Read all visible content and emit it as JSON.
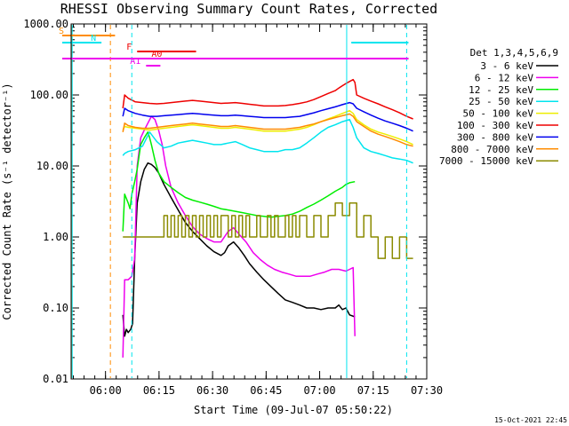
{
  "page": {
    "title": "RHESSI Observing Summary Count Rates, Corrected",
    "xlabel": "Start Time (09-Jul-07 05:50:22)",
    "ylabel": "Corrected Count Rate (s⁻¹ detector⁻¹)",
    "timestamp": "15-Oct-2021 22:45"
  },
  "legend": {
    "header": "Det 1,3,4,5,6,9"
  },
  "flags": [
    {
      "label": "S",
      "color": "#ff8c00",
      "y": 40,
      "start": -3.5,
      "end": 12.3
    },
    {
      "label": "N",
      "color": "#00e5ee",
      "y": 48,
      "start": -3.5,
      "end": 8.5
    },
    {
      "label": "N",
      "color": "#00e5ee",
      "y": 48,
      "start": 78.5,
      "end": 94.5
    },
    {
      "label": "F",
      "color": "#ee0000",
      "y": 58,
      "start": 18.5,
      "end": 35.0
    },
    {
      "label": "A0",
      "color": "#ee0000",
      "y": 66,
      "start": -3.5,
      "end": 94.5
    },
    {
      "label": "A0",
      "color": "#ee00ee",
      "y": 66,
      "start": -3.5,
      "end": 94.5
    },
    {
      "label": "A1",
      "color": "#ee00ee",
      "y": 74,
      "start": 21.0,
      "end": 25.0
    }
  ],
  "chart_data": {
    "type": "line",
    "title": "RHESSI Observing Summary Count Rates, Corrected",
    "xlabel": "Start Time (09-Jul-07 05:50:22)",
    "ylabel": "Corrected Count Rate (s⁻¹ detector⁻¹)",
    "x_unit": "minutes after 05:50:22",
    "x_ticks": [
      {
        "t": 9.63,
        "label": "06:00"
      },
      {
        "t": 24.63,
        "label": "06:15"
      },
      {
        "t": 39.63,
        "label": "06:30"
      },
      {
        "t": 54.63,
        "label": "06:45"
      },
      {
        "t": 69.63,
        "label": "07:00"
      },
      {
        "t": 84.63,
        "label": "07:15"
      },
      {
        "t": 99.63,
        "label": "07:30"
      }
    ],
    "xlim": [
      0,
      99.63
    ],
    "yscale": "log",
    "ylim": [
      0.01,
      1000
    ],
    "y_ticks": [
      "0.01",
      "0.10",
      "1.00",
      "10.00",
      "100.00",
      "1000.00"
    ],
    "grid": false,
    "legend_placement": "right",
    "vlines": [
      {
        "t": -0.3,
        "color": "#ff8c00",
        "dash": "none"
      },
      {
        "t": 0.3,
        "color": "#00e5ee",
        "dash": "none"
      },
      {
        "t": 11.0,
        "color": "#ff8c00",
        "dash": "5,4"
      },
      {
        "t": 17.0,
        "color": "#00e5ee",
        "dash": "5,4"
      },
      {
        "t": 77.2,
        "color": "#00e5ee",
        "dash": "none"
      },
      {
        "t": 94.0,
        "color": "#00e5ee",
        "dash": "5,4"
      }
    ],
    "series": [
      {
        "name": "3 - 6 keV",
        "color": "#000000",
        "t": [
          14.5,
          15.0,
          15.5,
          16.0,
          16.7,
          17.2,
          17.8,
          18.5,
          19.5,
          20.5,
          21.5,
          22.5,
          23.5,
          24.5,
          26.0,
          28.0,
          30.0,
          32.0,
          34.0,
          36.0,
          38.0,
          40.0,
          42.0,
          43.0,
          44.0,
          45.5,
          47.0,
          48.5,
          50.0,
          52.0,
          54.0,
          56.0,
          58.0,
          60.0,
          62.0,
          64.0,
          66.0,
          68.0,
          70.0,
          72.0,
          74.0,
          75.0,
          76.0,
          77.0,
          78.0,
          79.5
        ],
        "v": [
          0.08,
          0.04,
          0.05,
          0.045,
          0.05,
          0.06,
          0.5,
          3.0,
          6.0,
          9.0,
          11.0,
          10.5,
          9.5,
          8.0,
          5.5,
          3.6,
          2.4,
          1.6,
          1.2,
          0.95,
          0.75,
          0.62,
          0.55,
          0.6,
          0.75,
          0.85,
          0.7,
          0.55,
          0.42,
          0.32,
          0.25,
          0.2,
          0.16,
          0.13,
          0.12,
          0.11,
          0.1,
          0.1,
          0.095,
          0.1,
          0.1,
          0.11,
          0.095,
          0.1,
          0.08,
          0.075
        ]
      },
      {
        "name": "6 - 12 keV",
        "color": "#ee00ee",
        "t": [
          14.5,
          15.0,
          16.0,
          17.0,
          17.8,
          18.5,
          19.5,
          20.5,
          21.5,
          22.5,
          23.5,
          24.5,
          25.5,
          26.5,
          28.0,
          30.0,
          32.0,
          34.0,
          36.0,
          38.0,
          40.0,
          42.0,
          44.0,
          45.5,
          47.0,
          49.0,
          51.0,
          53.0,
          55.0,
          57.0,
          59.0,
          61.0,
          63.0,
          65.0,
          67.0,
          69.0,
          71.0,
          73.0,
          75.0,
          77.0,
          78.0,
          79.0,
          79.5
        ],
        "v": [
          0.02,
          0.25,
          0.25,
          0.28,
          0.5,
          10.0,
          25.0,
          32.0,
          40.0,
          50.0,
          45.0,
          32.0,
          20.0,
          10.0,
          5.0,
          3.0,
          2.0,
          1.4,
          1.1,
          0.95,
          0.85,
          0.85,
          1.2,
          1.35,
          1.1,
          0.85,
          0.6,
          0.48,
          0.4,
          0.35,
          0.32,
          0.3,
          0.28,
          0.28,
          0.28,
          0.3,
          0.32,
          0.35,
          0.35,
          0.33,
          0.35,
          0.37,
          0.04
        ]
      },
      {
        "name": "12 - 25 keV",
        "color": "#00ee00",
        "t": [
          14.5,
          15.0,
          16.0,
          16.5,
          17.0,
          17.8,
          18.5,
          19.5,
          20.5,
          21.5,
          22.0,
          22.5,
          23.5,
          24.5,
          26.0,
          28.0,
          30.0,
          32.0,
          34.0,
          36.0,
          38.0,
          40.0,
          42.0,
          44.0,
          46.0,
          48.0,
          50.0,
          52.0,
          54.0,
          56.0,
          58.0,
          60.0,
          62.0,
          64.0,
          66.0,
          68.0,
          70.0,
          72.0,
          74.0,
          76.0,
          77.0,
          78.0,
          79.5
        ],
        "v": [
          1.2,
          4.0,
          3.0,
          2.5,
          4.0,
          6.0,
          9.0,
          20.0,
          25.0,
          30.0,
          25.0,
          20.0,
          12.0,
          8.0,
          6.0,
          5.0,
          4.2,
          3.6,
          3.3,
          3.1,
          2.9,
          2.7,
          2.5,
          2.4,
          2.3,
          2.2,
          2.1,
          2.0,
          1.95,
          1.9,
          1.95,
          2.0,
          2.1,
          2.3,
          2.6,
          2.9,
          3.3,
          3.8,
          4.4,
          5.0,
          5.5,
          5.8,
          6.0
        ]
      },
      {
        "name": "25 - 50 keV",
        "color": "#00e5ee",
        "t": [
          14.5,
          15.0,
          16.0,
          18.0,
          20.0,
          22.0,
          24.0,
          26.0,
          28.0,
          30.0,
          32.0,
          34.0,
          36.0,
          38.0,
          40.0,
          42.0,
          44.0,
          46.0,
          48.0,
          50.0,
          52.0,
          54.0,
          56.0,
          58.0,
          60.0,
          62.0,
          64.0,
          66.0,
          68.0,
          70.0,
          72.0,
          74.0,
          76.0,
          78.0,
          79.0,
          80.0,
          82.0,
          84.0,
          86.0,
          88.0,
          90.0,
          92.0,
          94.0,
          95.8
        ],
        "v": [
          14.0,
          15.0,
          16.0,
          17.0,
          19.0,
          30.0,
          22.0,
          18.0,
          19.0,
          21.0,
          22.0,
          23.0,
          22.0,
          21.0,
          20.0,
          20.0,
          21.0,
          22.0,
          20.0,
          18.0,
          17.0,
          16.0,
          16.0,
          16.0,
          17.0,
          17.0,
          18.0,
          21.0,
          25.0,
          30.0,
          35.0,
          38.0,
          42.0,
          45.0,
          35.0,
          25.0,
          18.0,
          16.0,
          15.0,
          14.0,
          13.0,
          12.5,
          12.0,
          11.0
        ]
      },
      {
        "name": "50 - 100 keV",
        "color": "#eeee00",
        "t": [
          14.5,
          15.0,
          16.0,
          18.0,
          20.0,
          22.0,
          24.0,
          26.0,
          28.0,
          30.0,
          32.0,
          34.0,
          36.0,
          38.0,
          40.0,
          42.0,
          44.0,
          46.0,
          48.0,
          50.0,
          52.0,
          54.0,
          56.0,
          58.0,
          60.0,
          62.0,
          64.0,
          66.0,
          68.0,
          70.0,
          72.0,
          74.0,
          76.0,
          78.0,
          79.0,
          80.0,
          82.0,
          84.0,
          86.0,
          88.0,
          90.0,
          92.0,
          94.0,
          95.8
        ],
        "v": [
          32.0,
          36.0,
          35.0,
          34.0,
          33.0,
          32.0,
          33.0,
          34.0,
          35.0,
          36.0,
          37.0,
          38.0,
          37.0,
          36.0,
          35.0,
          34.0,
          34.0,
          35.0,
          34.0,
          33.0,
          32.0,
          31.0,
          31.0,
          31.0,
          31.0,
          32.0,
          33.0,
          35.0,
          38.0,
          42.0,
          46.0,
          50.0,
          55.0,
          60.0,
          55.0,
          45.0,
          38.0,
          33.0,
          30.0,
          28.0,
          26.0,
          24.0,
          22.0,
          20.0
        ]
      },
      {
        "name": "100 - 300 keV",
        "color": "#ee0000",
        "t": [
          14.5,
          15.0,
          16.0,
          18.0,
          20.0,
          22.0,
          24.0,
          26.0,
          28.0,
          30.0,
          32.0,
          34.0,
          36.0,
          38.0,
          40.0,
          42.0,
          44.0,
          46.0,
          48.0,
          50.0,
          52.0,
          54.0,
          56.0,
          58.0,
          60.0,
          62.0,
          64.0,
          66.0,
          68.0,
          70.0,
          72.0,
          74.0,
          75.0,
          76.0,
          77.0,
          78.0,
          79.0,
          79.5,
          80.0,
          82.0,
          84.0,
          86.0,
          88.0,
          90.0,
          92.0,
          94.0,
          95.8
        ],
        "v": [
          65.0,
          100.0,
          90.0,
          80.0,
          78.0,
          76.0,
          75.0,
          76.0,
          78.0,
          80.0,
          82.0,
          84.0,
          82.0,
          80.0,
          78.0,
          76.0,
          77.0,
          78.0,
          76.0,
          74.0,
          72.0,
          70.0,
          70.0,
          70.0,
          71.0,
          73.0,
          76.0,
          80.0,
          86.0,
          95.0,
          105.0,
          115.0,
          125.0,
          135.0,
          145.0,
          155.0,
          165.0,
          150.0,
          100.0,
          90.0,
          82.0,
          75.0,
          68.0,
          62.0,
          56.0,
          50.0,
          46.0
        ]
      },
      {
        "name": "300 - 800 keV",
        "color": "#0000ee",
        "t": [
          14.5,
          15.0,
          16.0,
          18.0,
          20.0,
          22.0,
          24.0,
          26.0,
          28.0,
          30.0,
          32.0,
          34.0,
          36.0,
          38.0,
          40.0,
          42.0,
          44.0,
          46.0,
          48.0,
          50.0,
          52.0,
          54.0,
          56.0,
          58.0,
          60.0,
          62.0,
          64.0,
          66.0,
          68.0,
          70.0,
          72.0,
          74.0,
          76.0,
          78.0,
          79.0,
          80.0,
          82.0,
          84.0,
          86.0,
          88.0,
          90.0,
          92.0,
          94.0,
          95.8
        ],
        "v": [
          50.0,
          65.0,
          60.0,
          55.0,
          52.0,
          50.0,
          50.0,
          51.0,
          52.0,
          53.0,
          54.0,
          55.0,
          54.0,
          53.0,
          52.0,
          51.0,
          51.0,
          52.0,
          51.0,
          50.0,
          49.0,
          48.0,
          48.0,
          48.0,
          48.0,
          49.0,
          50.0,
          53.0,
          56.0,
          60.0,
          64.0,
          68.0,
          73.0,
          78.0,
          75.0,
          65.0,
          58.0,
          52.0,
          47.0,
          43.0,
          40.0,
          37.0,
          34.0,
          31.0
        ]
      },
      {
        "name": "800 - 7000 keV",
        "color": "#ff8c00",
        "t": [
          14.5,
          15.0,
          16.0,
          18.0,
          20.0,
          22.0,
          24.0,
          26.0,
          28.0,
          30.0,
          32.0,
          34.0,
          36.0,
          38.0,
          40.0,
          42.0,
          44.0,
          46.0,
          48.0,
          50.0,
          52.0,
          54.0,
          56.0,
          58.0,
          60.0,
          62.0,
          64.0,
          66.0,
          68.0,
          70.0,
          72.0,
          74.0,
          76.0,
          78.0,
          79.0,
          80.0,
          82.0,
          84.0,
          86.0,
          88.0,
          90.0,
          92.0,
          94.0,
          95.8
        ],
        "v": [
          30.0,
          40.0,
          37.0,
          35.0,
          34.0,
          34.0,
          35.0,
          36.0,
          37.0,
          38.0,
          39.0,
          40.0,
          39.0,
          38.0,
          37.0,
          36.0,
          36.0,
          37.0,
          36.0,
          35.0,
          34.0,
          33.0,
          33.0,
          33.0,
          33.0,
          34.0,
          35.0,
          37.0,
          39.0,
          42.0,
          45.0,
          48.0,
          51.0,
          54.0,
          50.0,
          42.0,
          36.0,
          31.0,
          28.0,
          26.0,
          24.0,
          22.0,
          20.0,
          19.0
        ]
      },
      {
        "name": "7000 - 15000 keV",
        "color": "#8b8b00",
        "t": [
          14.5,
          26.0,
          26.0,
          27.0,
          27.0,
          28.0,
          28.0,
          29.0,
          29.0,
          30.0,
          30.0,
          31.0,
          31.0,
          32.0,
          32.0,
          33.0,
          33.0,
          34.0,
          34.0,
          35.0,
          35.0,
          36.0,
          36.0,
          37.0,
          37.0,
          38.0,
          38.0,
          39.0,
          39.0,
          40.0,
          40.0,
          41.0,
          41.0,
          42.0,
          42.0,
          44.0,
          44.0,
          45.0,
          45.0,
          46.0,
          46.0,
          47.0,
          47.0,
          48.0,
          48.0,
          49.0,
          49.0,
          50.0,
          50.0,
          52.0,
          52.0,
          53.0,
          53.0,
          55.0,
          55.0,
          56.0,
          56.0,
          57.0,
          57.0,
          58.0,
          58.0,
          60.0,
          60.0,
          61.0,
          61.0,
          62.0,
          62.0,
          63.0,
          63.0,
          64.0,
          64.0,
          66.0,
          66.0,
          68.0,
          68.0,
          70.0,
          70.0,
          72.0,
          72.0,
          74.0,
          74.0,
          76.0,
          76.0,
          78.0,
          78.0,
          80.0,
          80.0,
          82.0,
          82.0,
          84.0,
          84.0,
          86.0,
          86.0,
          88.0,
          88.0,
          90.0,
          90.0,
          92.0,
          92.0,
          94.0,
          94.0,
          95.8
        ],
        "v": [
          1.0,
          1.0,
          2.0,
          2.0,
          1.0,
          1.0,
          2.0,
          2.0,
          1.0,
          1.0,
          2.0,
          2.0,
          1.0,
          1.0,
          2.0,
          2.0,
          1.0,
          1.0,
          2.0,
          2.0,
          1.0,
          1.0,
          2.0,
          2.0,
          1.0,
          1.0,
          2.0,
          2.0,
          1.0,
          1.0,
          2.0,
          2.0,
          1.0,
          1.0,
          2.0,
          2.0,
          1.0,
          1.0,
          2.0,
          2.0,
          1.0,
          1.0,
          2.0,
          2.0,
          1.0,
          1.0,
          2.0,
          2.0,
          1.0,
          1.0,
          2.0,
          2.0,
          1.0,
          1.0,
          2.0,
          2.0,
          1.0,
          1.0,
          2.0,
          2.0,
          1.0,
          1.0,
          2.0,
          2.0,
          1.0,
          1.0,
          2.0,
          2.0,
          1.0,
          1.0,
          2.0,
          2.0,
          1.0,
          1.0,
          2.0,
          2.0,
          1.0,
          1.0,
          2.0,
          2.0,
          3.0,
          3.0,
          2.0,
          2.0,
          3.0,
          3.0,
          1.0,
          1.0,
          2.0,
          2.0,
          1.0,
          1.0,
          0.5,
          0.5,
          1.0,
          1.0,
          0.5,
          0.5,
          1.0,
          1.0,
          0.5,
          0.5
        ]
      }
    ]
  }
}
